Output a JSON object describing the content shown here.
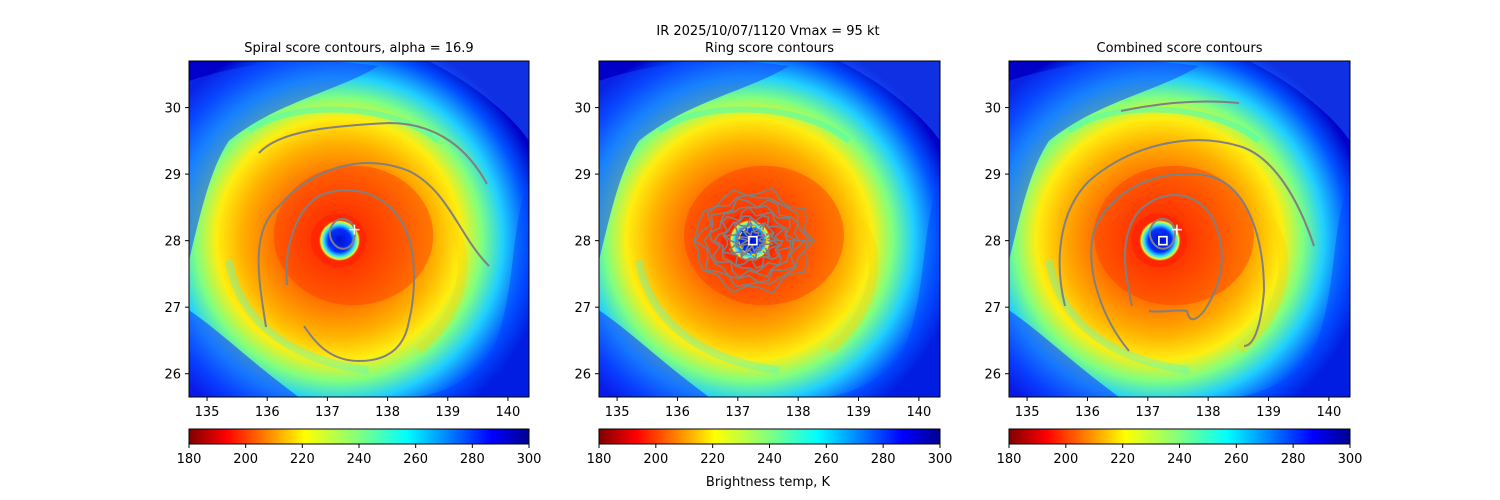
{
  "suptitle": "IR  2025/10/07/1120    Vmax = 95 kt",
  "colorbar": {
    "label": "Brightness temp, K",
    "ticks": [
      180,
      200,
      220,
      240,
      260,
      280,
      300
    ],
    "range": [
      180,
      300
    ],
    "colormap": "jet_r"
  },
  "chart_data": [
    {
      "type": "heatmap",
      "title": "Spiral score contours, alpha = 16.9",
      "xlim": [
        134.7,
        140.35
      ],
      "ylim": [
        25.65,
        30.7
      ],
      "xticks": [
        135,
        136,
        137,
        138,
        139,
        140
      ],
      "yticks": [
        26,
        27,
        28,
        29,
        30
      ],
      "eye_center": [
        137.25,
        28.0
      ],
      "marker": "plus",
      "contour_color": "#808080"
    },
    {
      "type": "heatmap",
      "title": "Ring score contours",
      "xlim": [
        134.7,
        140.35
      ],
      "ylim": [
        25.65,
        30.7
      ],
      "xticks": [
        135,
        136,
        137,
        138,
        139,
        140
      ],
      "yticks": [
        26,
        27,
        28,
        29,
        30
      ],
      "eye_center": [
        137.25,
        28.0
      ],
      "marker": "square",
      "contour_color": "#808080"
    },
    {
      "type": "heatmap",
      "title": "Combined score contours",
      "xlim": [
        134.7,
        140.35
      ],
      "ylim": [
        25.65,
        30.7
      ],
      "xticks": [
        135,
        136,
        137,
        138,
        139,
        140
      ],
      "yticks": [
        26,
        27,
        28,
        29,
        30
      ],
      "eye_center": [
        137.25,
        28.0
      ],
      "marker": "square",
      "contour_color": "#808080"
    }
  ]
}
